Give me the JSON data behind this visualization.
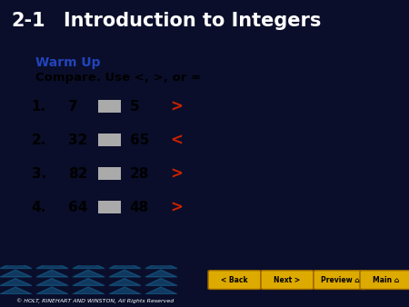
{
  "title_number": "2-1",
  "title_text": "Introduction to Integers",
  "title_bg_color": "#0a0e2a",
  "title_font_color": "#ffffff",
  "footer_bg_color": "#2a8fcc",
  "content_bg_color": "#ffffff",
  "warm_up_label": "Warm Up",
  "warm_up_color": "#2244bb",
  "instruction": "Compare. Use <, >, or =",
  "instruction_color": "#000000",
  "problems": [
    {
      "num": "1.",
      "a": "7",
      "b": "5",
      "answer": ">"
    },
    {
      "num": "2.",
      "a": "32",
      "b": "65",
      "answer": "<"
    },
    {
      "num": "3.",
      "a": "82",
      "b": "28",
      "answer": ">"
    },
    {
      "num": "4.",
      "a": "64",
      "b": "48",
      "answer": ">"
    }
  ],
  "answer_color": "#cc2200",
  "number_color": "#000000",
  "box_color": "#aaaaaa",
  "footer_text": "© HOLT, RINEHART AND WINSTON, All Rights Reserved",
  "footer_text_color": "#ffffff",
  "footer_bottom_color": "#111111",
  "button_color": "#ddaa00",
  "button_labels": [
    "< Back",
    "Next >",
    "Preview ⌂",
    "Main ⌂"
  ],
  "figsize": [
    4.5,
    3.38
  ],
  "dpi": 100
}
